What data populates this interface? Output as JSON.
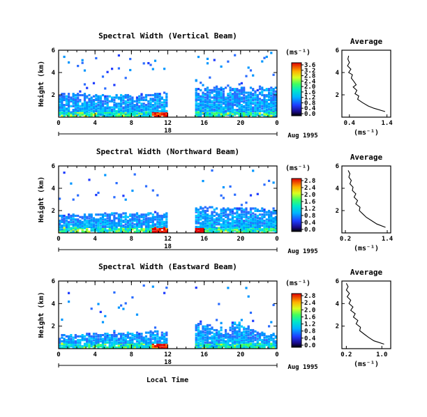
{
  "chart_data": [
    {
      "type": "heatmap",
      "title": "Spectral Width (Vertical Beam)",
      "ylabel": "Height (km)",
      "yticks": [
        "6",
        "4",
        "2"
      ],
      "ylim": [
        0,
        6
      ],
      "xticks": [
        "0",
        "4",
        "8",
        "12",
        "16",
        "20",
        "0"
      ],
      "xlim": [
        0,
        24
      ],
      "date_day": "18",
      "date_label": "Aug 1995",
      "colorbar": {
        "label": "(ms⁻¹)",
        "ticks": [
          "3.6",
          "3.2",
          "2.8",
          "2.4",
          "2.0",
          "1.6",
          "1.2",
          "0.8",
          "0.4",
          "0.0"
        ]
      },
      "data_gap_hours": [
        11.8,
        14.8
      ],
      "tops_km": [
        2.1,
        2.05,
        2.0,
        1.95,
        1.9,
        1.85,
        1.9,
        1.95,
        1.85,
        1.9,
        2.0,
        2.1,
        0,
        0,
        0,
        2.5,
        2.6,
        2.7,
        2.6,
        2.5,
        2.55,
        2.6,
        2.65,
        2.6
      ],
      "average_profile": {
        "title": "Average",
        "xlabel": "(ms⁻¹)",
        "xticks": [
          "0.4",
          "1.4"
        ],
        "xlim": [
          0.2,
          1.5
        ],
        "yticks": [
          "6",
          "4",
          "2"
        ],
        "ylim": [
          0,
          6
        ],
        "height_km": [
          0.5,
          0.8,
          1.0,
          1.3,
          1.6,
          1.9,
          2.1,
          2.4,
          2.7,
          2.9,
          3.2,
          3.5,
          3.8,
          4.0,
          4.3,
          4.6,
          4.9,
          5.2,
          5.5
        ],
        "width": [
          1.35,
          1.05,
          0.9,
          0.75,
          0.62,
          0.65,
          0.55,
          0.6,
          0.5,
          0.58,
          0.52,
          0.45,
          0.48,
          0.38,
          0.44,
          0.35,
          0.4,
          0.36,
          0.38
        ]
      }
    },
    {
      "type": "heatmap",
      "title": "Spectral Width (Northward Beam)",
      "ylabel": "Height (km)",
      "yticks": [
        "6",
        "4",
        "2"
      ],
      "ylim": [
        0,
        6
      ],
      "xticks": [
        "0",
        "4",
        "8",
        "12",
        "16",
        "20",
        "0"
      ],
      "xlim": [
        0,
        24
      ],
      "date_day": "18",
      "date_label": "Aug 1995",
      "colorbar": {
        "label": "(ms⁻¹)",
        "ticks": [
          "2.8",
          "2.4",
          "2.0",
          "1.6",
          "1.2",
          "0.8",
          "0.4",
          "0.0"
        ]
      },
      "data_gap_hours": [
        11.8,
        14.8
      ],
      "tops_km": [
        1.5,
        1.55,
        1.6,
        1.6,
        1.65,
        1.7,
        1.7,
        1.75,
        1.75,
        1.8,
        1.8,
        1.85,
        0,
        0,
        0,
        2.3,
        2.25,
        2.2,
        2.2,
        2.15,
        2.2,
        2.2,
        2.15,
        2.2
      ],
      "average_profile": {
        "title": "Average",
        "xlabel": "(ms⁻¹)",
        "xticks": [
          "0.2",
          "1.4"
        ],
        "xlim": [
          0.1,
          1.5
        ],
        "yticks": [
          "6",
          "4",
          "2"
        ],
        "ylim": [
          0,
          6
        ],
        "height_km": [
          0.5,
          0.8,
          1.1,
          1.4,
          1.7,
          2.0,
          2.3,
          2.6,
          2.9,
          3.2,
          3.5,
          3.8,
          4.1,
          4.4,
          4.7,
          5.0,
          5.3,
          5.6
        ],
        "width": [
          1.35,
          1.1,
          0.95,
          0.8,
          0.7,
          0.6,
          0.62,
          0.5,
          0.55,
          0.45,
          0.5,
          0.4,
          0.42,
          0.33,
          0.37,
          0.3,
          0.33,
          0.28
        ]
      }
    },
    {
      "type": "heatmap",
      "title": "Spectral Width (Eastward Beam)",
      "ylabel": "Height (km)",
      "yticks": [
        "6",
        "4",
        "2"
      ],
      "ylim": [
        0,
        6
      ],
      "xticks": [
        "0",
        "4",
        "8",
        "12",
        "16",
        "20",
        "0"
      ],
      "xlim": [
        0,
        24
      ],
      "date_day": "18",
      "date_label": "Aug 1995",
      "xlabel": "Local Time",
      "colorbar": {
        "label": "(ms⁻¹)",
        "ticks": [
          "2.8",
          "2.4",
          "2.0",
          "1.6",
          "1.2",
          "0.8",
          "0.4",
          "0.0"
        ]
      },
      "data_gap_hours": [
        11.8,
        14.8
      ],
      "tops_km": [
        1.2,
        1.2,
        1.25,
        1.3,
        1.3,
        1.3,
        1.35,
        1.35,
        1.4,
        1.4,
        1.45,
        1.5,
        0,
        0,
        0,
        2.2,
        2.0,
        1.8,
        1.6,
        2.3,
        2.0,
        1.6,
        1.4,
        1.3
      ],
      "average_profile": {
        "title": "Average",
        "xlabel": "(ms⁻¹)",
        "xticks": [
          "0.2",
          "1.0"
        ],
        "xlim": [
          0.1,
          1.2
        ],
        "yticks": [
          "6",
          "4",
          "2"
        ],
        "ylim": [
          0,
          6
        ],
        "height_km": [
          0.4,
          0.7,
          1.0,
          1.3,
          1.6,
          1.9,
          2.2,
          2.5,
          2.8,
          3.1,
          3.4,
          3.7,
          4.0,
          4.3,
          4.6,
          4.9,
          5.2,
          5.5,
          5.8
        ],
        "width": [
          1.05,
          0.82,
          0.7,
          0.6,
          0.5,
          0.52,
          0.42,
          0.46,
          0.36,
          0.4,
          0.3,
          0.35,
          0.26,
          0.3,
          0.22,
          0.27,
          0.2,
          0.24,
          0.2
        ]
      }
    }
  ]
}
